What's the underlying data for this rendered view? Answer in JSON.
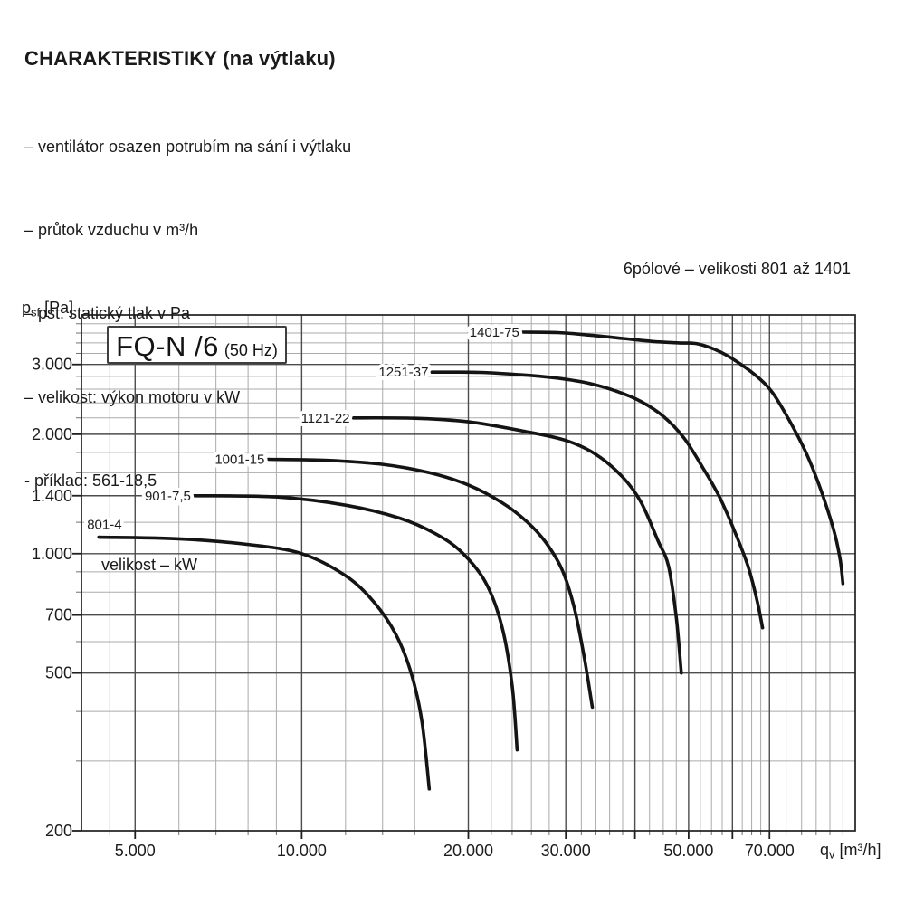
{
  "page": {
    "heading": "CHARAKTERISTIKY (na výtlaku)",
    "bullets": [
      "– ventilátor osazen potrubím na sání i výtlaku",
      "– průtok vzduchu v m³/h",
      "– pst: statický tlak v Pa",
      "– velikost: výkon motoru v kW",
      "- příklad: 561-18,5"
    ],
    "indent_line": "velikost – kW",
    "caption_right": "6pólové – velikosti 801 až 1401"
  },
  "chart_data": {
    "type": "line",
    "title_box": {
      "main": "FQ-N /6",
      "suffix": "(50 Hz)"
    },
    "colors": {
      "curve": "#141414",
      "grid_minor": "#ababab",
      "grid_major": "#4c4c4c",
      "border": "#1f1f1f",
      "text": "#1c1c1c"
    },
    "x_axis": {
      "label": {
        "base": "q",
        "sub": "v",
        "rest": " [m³/h]"
      },
      "scale": "log",
      "min": 4000,
      "max": 100000,
      "minor": [
        4500,
        6000,
        7000,
        8000,
        9000,
        12000,
        14000,
        16000,
        18000,
        22000,
        24000,
        26000,
        28000,
        32000,
        34000,
        36000,
        38000,
        42500,
        45000,
        47500,
        52500,
        55000,
        57500,
        62500,
        65000,
        67500,
        75000,
        80000,
        85000,
        90000,
        95000
      ],
      "strong": [
        5000,
        10000,
        20000,
        30000,
        40000,
        50000,
        60000,
        70000
      ],
      "labels": [
        {
          "v": 5000,
          "text": "5.000"
        },
        {
          "v": 10000,
          "text": "10.000"
        },
        {
          "v": 20000,
          "text": "20.000"
        },
        {
          "v": 30000,
          "text": "30.000"
        },
        {
          "v": 50000,
          "text": "50.000"
        },
        {
          "v": 70000,
          "text": "70.000"
        }
      ]
    },
    "y_axis": {
      "label": {
        "base": "p",
        "sub": "sf",
        "rest": " [Pa]"
      },
      "scale": "log",
      "min": 200,
      "max": 4000,
      "minor": [
        300,
        400,
        600,
        800,
        900,
        1200,
        1600,
        1800,
        2200,
        2400,
        2600,
        2800,
        3200,
        3400,
        3600,
        3800
      ],
      "strong": [
        500,
        700,
        1000,
        1400,
        2000,
        3000
      ],
      "labels": [
        {
          "v": 200,
          "text": "200"
        },
        {
          "v": 500,
          "text": "500"
        },
        {
          "v": 700,
          "text": "700"
        },
        {
          "v": 1000,
          "text": "1.000"
        },
        {
          "v": 1400,
          "text": "1.400"
        },
        {
          "v": 2000,
          "text": "2.000"
        },
        {
          "v": 3000,
          "text": "3.000"
        }
      ]
    },
    "series": [
      {
        "name": "801-4",
        "label_side": "above",
        "points": [
          [
            4300,
            1100
          ],
          [
            6000,
            1090
          ],
          [
            8000,
            1055
          ],
          [
            10000,
            1000
          ],
          [
            12000,
            880
          ],
          [
            13500,
            755
          ],
          [
            14800,
            625
          ],
          [
            15800,
            495
          ],
          [
            16500,
            375
          ],
          [
            17000,
            255
          ]
        ]
      },
      {
        "name": "901-7,5",
        "label_side": "left",
        "points": [
          [
            6400,
            1400
          ],
          [
            9000,
            1390
          ],
          [
            12000,
            1325
          ],
          [
            15000,
            1230
          ],
          [
            17500,
            1120
          ],
          [
            19500,
            1005
          ],
          [
            21500,
            845
          ],
          [
            23000,
            655
          ],
          [
            24000,
            465
          ],
          [
            24500,
            320
          ]
        ]
      },
      {
        "name": "1001-15",
        "label_side": "left",
        "points": [
          [
            8700,
            1730
          ],
          [
            11000,
            1720
          ],
          [
            14000,
            1680
          ],
          [
            17000,
            1600
          ],
          [
            20000,
            1490
          ],
          [
            23000,
            1345
          ],
          [
            25500,
            1205
          ],
          [
            27500,
            1075
          ],
          [
            29500,
            915
          ],
          [
            31000,
            740
          ],
          [
            32300,
            560
          ],
          [
            33500,
            410
          ]
        ]
      },
      {
        "name": "1121-22",
        "label_side": "left",
        "points": [
          [
            12400,
            2200
          ],
          [
            16000,
            2195
          ],
          [
            20000,
            2150
          ],
          [
            25000,
            2040
          ],
          [
            30000,
            1930
          ],
          [
            34000,
            1780
          ],
          [
            38000,
            1560
          ],
          [
            41000,
            1350
          ],
          [
            44000,
            1080
          ],
          [
            46000,
            930
          ],
          [
            47500,
            690
          ],
          [
            48500,
            500
          ]
        ]
      },
      {
        "name": "1251-37",
        "label_side": "left",
        "points": [
          [
            17200,
            2870
          ],
          [
            21000,
            2865
          ],
          [
            25000,
            2825
          ],
          [
            29000,
            2770
          ],
          [
            33000,
            2690
          ],
          [
            37000,
            2570
          ],
          [
            41000,
            2420
          ],
          [
            45000,
            2220
          ],
          [
            49000,
            1960
          ],
          [
            53000,
            1650
          ],
          [
            57000,
            1380
          ],
          [
            61000,
            1110
          ],
          [
            64000,
            930
          ],
          [
            66500,
            760
          ],
          [
            68000,
            650
          ]
        ]
      },
      {
        "name": "1401-75",
        "label_side": "left",
        "points": [
          [
            25100,
            3620
          ],
          [
            29000,
            3610
          ],
          [
            33000,
            3560
          ],
          [
            38000,
            3490
          ],
          [
            43000,
            3430
          ],
          [
            48000,
            3400
          ],
          [
            52000,
            3380
          ],
          [
            57000,
            3230
          ],
          [
            62000,
            3010
          ],
          [
            67000,
            2770
          ],
          [
            71000,
            2540
          ],
          [
            76000,
            2170
          ],
          [
            81000,
            1830
          ],
          [
            85000,
            1560
          ],
          [
            89000,
            1300
          ],
          [
            92000,
            1110
          ],
          [
            94000,
            960
          ],
          [
            95000,
            840
          ]
        ]
      }
    ]
  }
}
